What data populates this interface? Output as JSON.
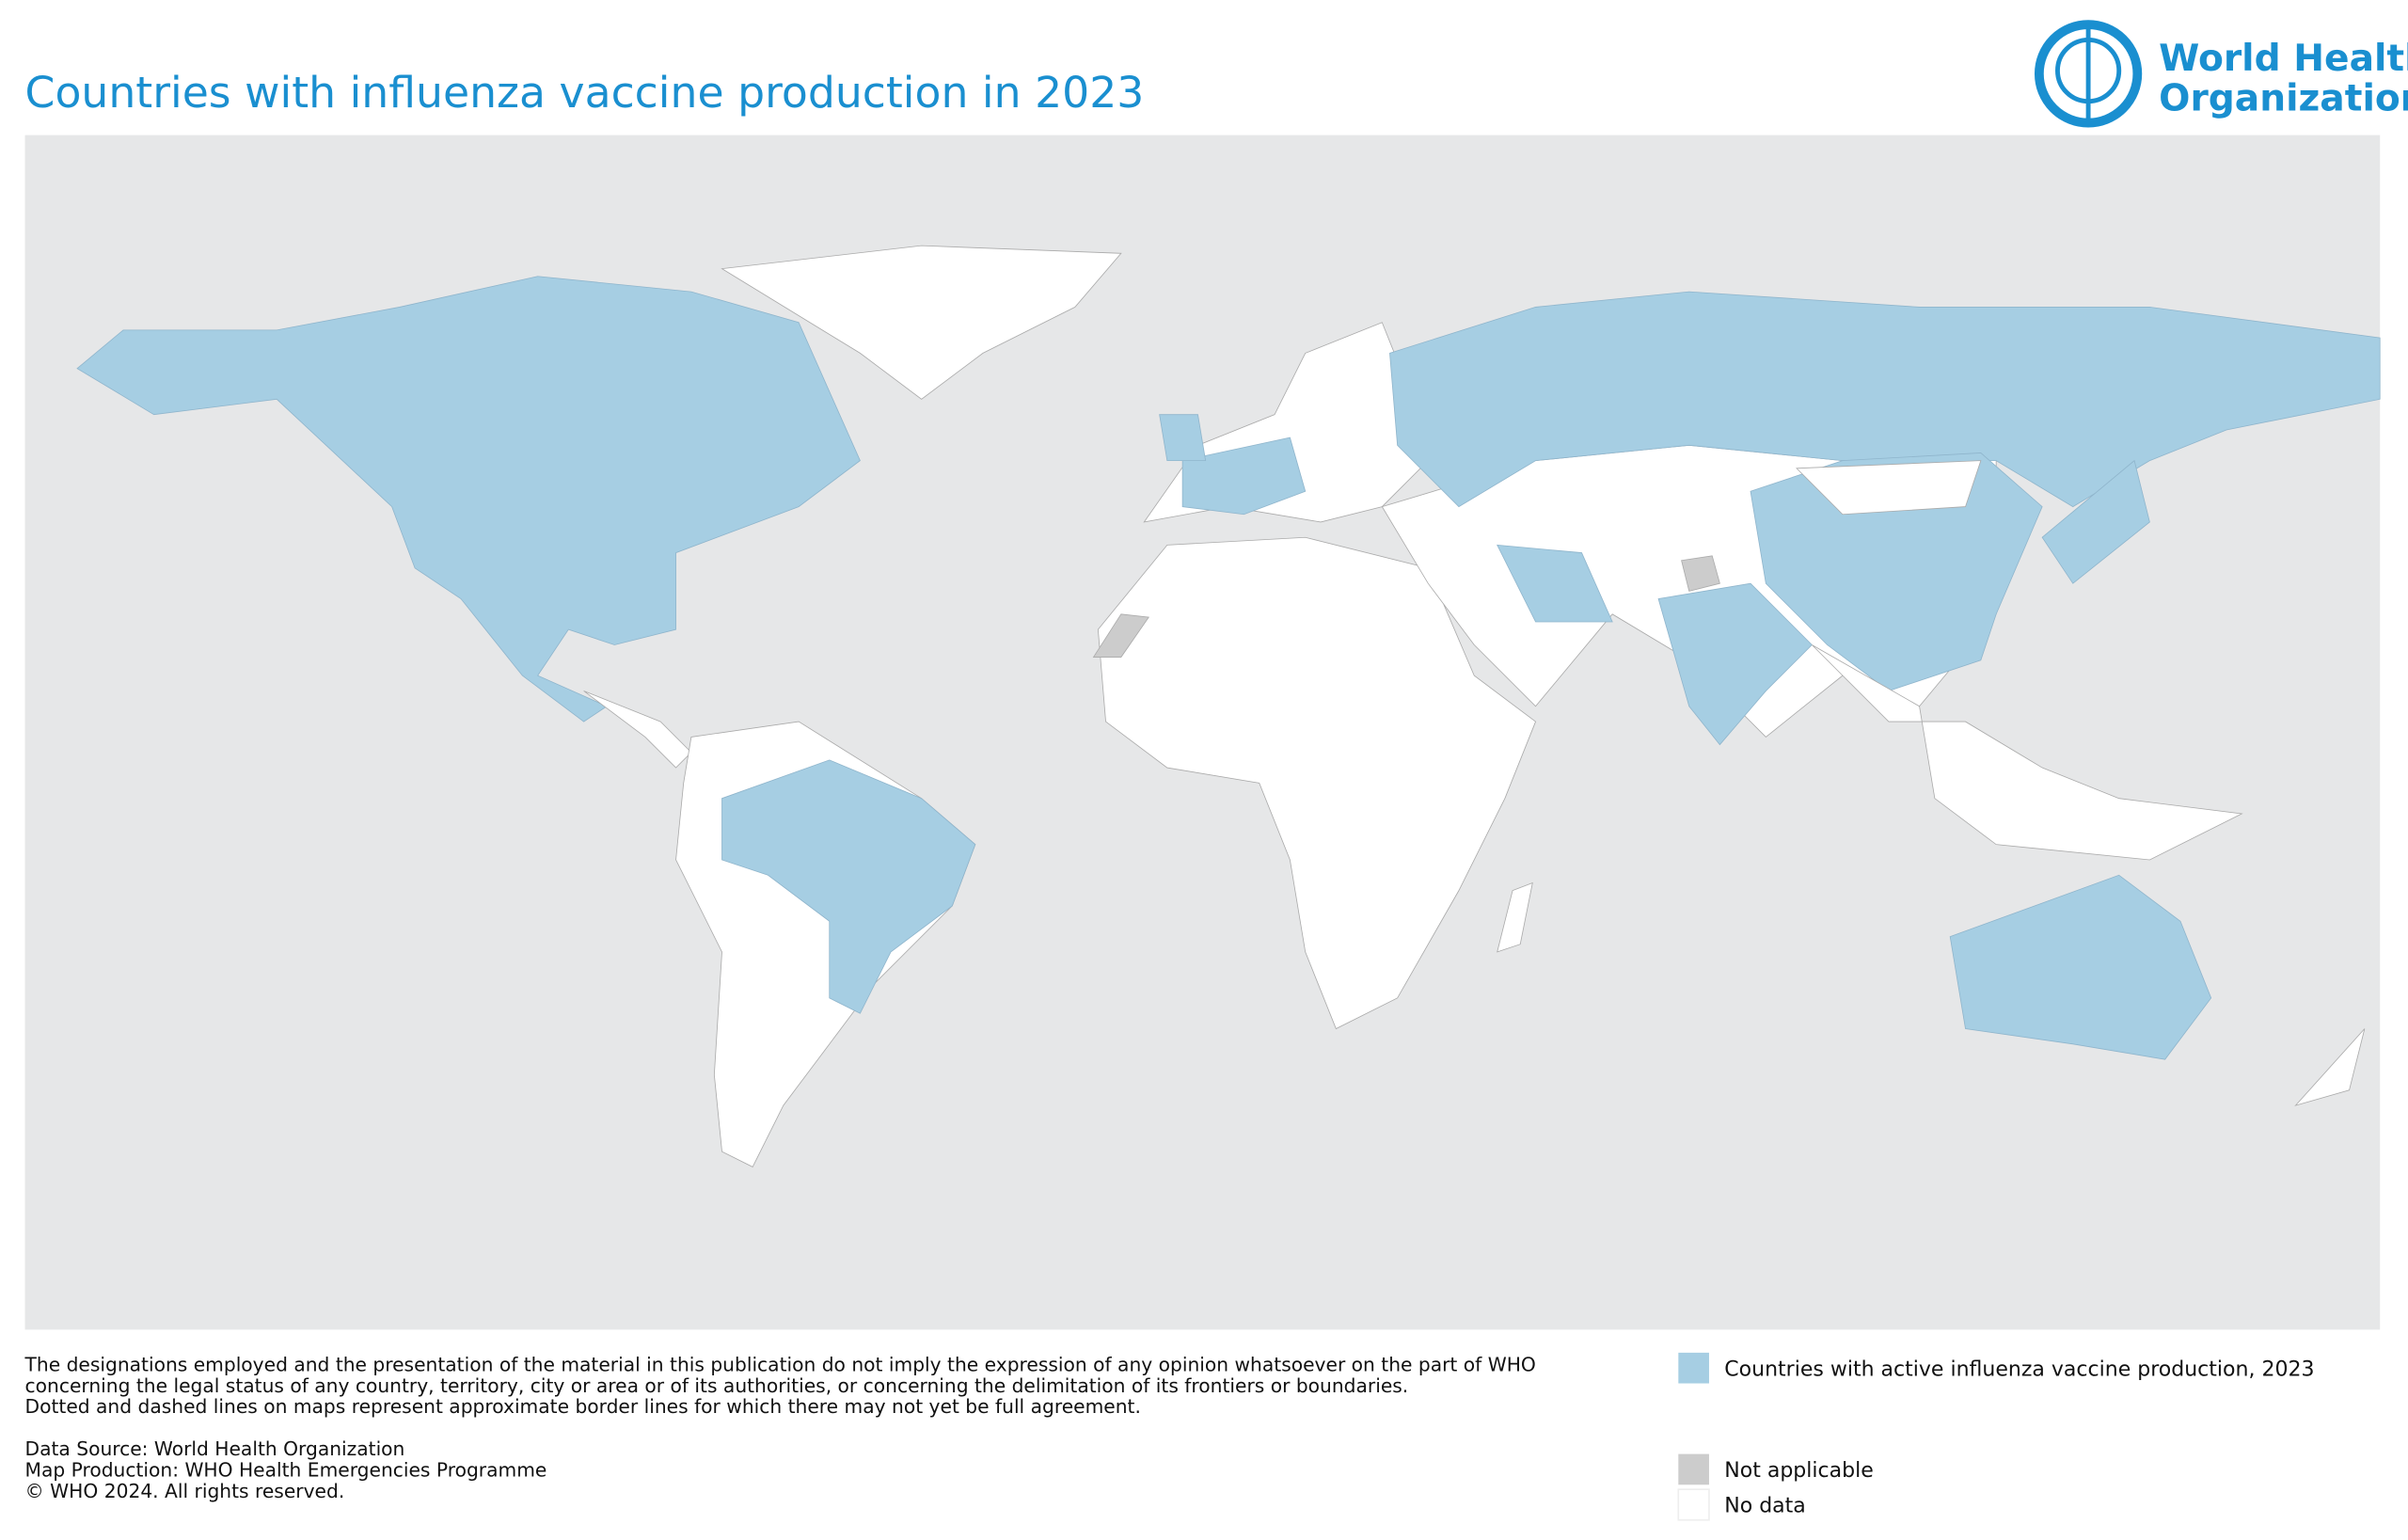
{
  "header": {
    "title": "Countries with influenza vaccine production in 2023"
  },
  "logo": {
    "line1": "World Health",
    "line2": "Organization"
  },
  "disclaimer": [
    "The designations employed and the presentation of the material in this publication do not imply the expression of any opinion whatsoever on the part of WHO",
    "concerning the legal status of any country, territory, city or area or of its authorities, or concerning the delimitation of its frontiers or boundaries.",
    "Dotted and dashed lines on maps represent approximate border lines for which there may not yet be full agreement."
  ],
  "credits": [
    "Data Source: World Health Organization",
    "Map Production: WHO Health Emergencies Programme",
    "© WHO 2024. All rights reserved."
  ],
  "legend": [
    {
      "label": "Countries with active influenza vaccine production, 2023",
      "color": "#a6cee3"
    },
    {
      "label": "Not applicable",
      "color": "#cccccc"
    },
    {
      "label": "No data",
      "color": "#ffffff"
    }
  ]
}
